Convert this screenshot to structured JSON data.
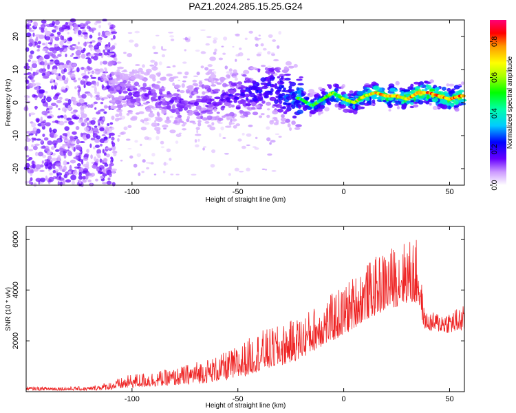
{
  "title": "PAZ1.2024.285.15.25.G24",
  "chart_data": [
    {
      "type": "heatmap",
      "xlabel": "Height of straight line (km)",
      "ylabel": "Frequency (Hz)",
      "xlim": [
        -150,
        57
      ],
      "ylim": [
        -25,
        25
      ],
      "xticks": [
        -100,
        -50,
        0,
        50
      ],
      "yticks": [
        -20,
        -10,
        0,
        10,
        20
      ],
      "colorbar": {
        "label": "Normalized spectral amplitude",
        "range": [
          0,
          0.92
        ],
        "ticks": [
          0.0,
          0.2,
          0.4,
          0.6,
          0.8
        ]
      },
      "ridge": {
        "x": [
          -110,
          -100,
          -90,
          -80,
          -70,
          -60,
          -50,
          -40,
          -35,
          -30,
          -25,
          -20,
          -15,
          -10,
          -5,
          0,
          5,
          10,
          15,
          20,
          25,
          30,
          35,
          40,
          45,
          50,
          55
        ],
        "freq": [
          3,
          3,
          2,
          0,
          0,
          1,
          2,
          4,
          5,
          3,
          2,
          1,
          -1,
          1,
          3,
          1,
          0,
          2,
          3,
          2,
          2,
          1,
          3,
          3,
          2,
          1,
          2
        ],
        "amp": [
          0.15,
          0.18,
          0.17,
          0.18,
          0.2,
          0.2,
          0.25,
          0.3,
          0.3,
          0.35,
          0.4,
          0.45,
          0.45,
          0.5,
          0.55,
          0.55,
          0.6,
          0.65,
          0.7,
          0.75,
          0.7,
          0.7,
          0.8,
          0.8,
          0.75,
          0.75,
          0.8
        ]
      }
    },
    {
      "type": "line",
      "xlabel": "Height of straight line (km)",
      "ylabel": "SNR (10 * v/v)",
      "xlim": [
        -150,
        57
      ],
      "ylim": [
        0,
        6500
      ],
      "xticks": [
        -100,
        -50,
        0,
        50
      ],
      "yticks": [
        2000,
        4000,
        6000
      ],
      "color": "#ee2222",
      "envelope": {
        "x": [
          -150,
          -120,
          -110,
          -100,
          -90,
          -80,
          -70,
          -60,
          -50,
          -40,
          -30,
          -20,
          -10,
          0,
          10,
          20,
          30,
          35,
          38,
          40,
          50,
          57
        ],
        "lo": [
          50,
          50,
          80,
          150,
          200,
          250,
          300,
          400,
          500,
          800,
          1000,
          1300,
          1800,
          2200,
          2800,
          3200,
          3500,
          3400,
          2500,
          2400,
          2300,
          2400
        ],
        "hi": [
          200,
          200,
          400,
          700,
          800,
          900,
          1200,
          1400,
          1800,
          2400,
          2600,
          3000,
          3600,
          4200,
          5000,
          5600,
          6000,
          6000,
          3200,
          3100,
          3200,
          3400
        ]
      }
    }
  ]
}
